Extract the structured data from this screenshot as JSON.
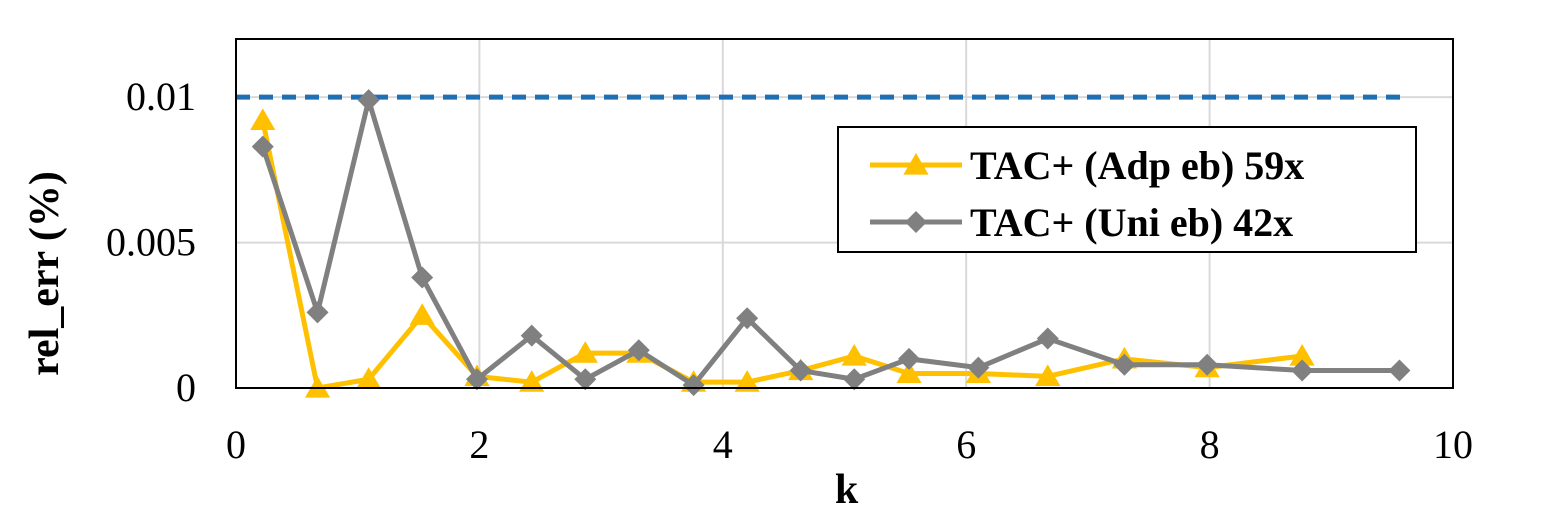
{
  "chart_data": {
    "type": "line",
    "xlabel": "k",
    "ylabel": "rel_err (%)",
    "xlim": [
      0,
      10
    ],
    "ylim": [
      0,
      0.012
    ],
    "xticks": [
      "0",
      "2",
      "4",
      "6",
      "8",
      "10"
    ],
    "yticks": [
      "0",
      "0.005",
      "0.01"
    ],
    "grid": true,
    "legend_position": "right",
    "threshold": {
      "y": 0.01,
      "style": "dashed",
      "color": "#1f6fb5"
    },
    "series": [
      {
        "name": "TAC+ (Adp eb) 59x",
        "color": "#ffc000",
        "marker": "triangle",
        "x": [
          0.22,
          0.67,
          1.09,
          1.53,
          1.98,
          2.43,
          2.87,
          3.31,
          3.76,
          4.2,
          4.64,
          5.08,
          5.53,
          6.1,
          6.67,
          7.3,
          7.98,
          8.76
        ],
        "y": [
          0.0092,
          0.0,
          0.0003,
          0.0025,
          0.0004,
          0.0002,
          0.0012,
          0.0012,
          0.0002,
          0.0002,
          0.0006,
          0.0011,
          0.0005,
          0.0005,
          0.0004,
          0.001,
          0.0007,
          0.0011
        ]
      },
      {
        "name": "TAC+ (Uni eb) 42x",
        "color": "#808080",
        "marker": "diamond",
        "x": [
          0.22,
          0.67,
          1.09,
          1.53,
          1.98,
          2.43,
          2.87,
          3.31,
          3.76,
          4.2,
          4.64,
          5.08,
          5.53,
          6.1,
          6.67,
          7.3,
          7.98,
          8.76,
          9.56
        ],
        "y": [
          0.0083,
          0.0026,
          0.0099,
          0.0038,
          0.0003,
          0.0018,
          0.0003,
          0.0013,
          0.0001,
          0.0024,
          0.0006,
          0.0003,
          0.001,
          0.0007,
          0.0017,
          0.0008,
          0.0008,
          0.0006,
          0.0006
        ]
      }
    ]
  }
}
